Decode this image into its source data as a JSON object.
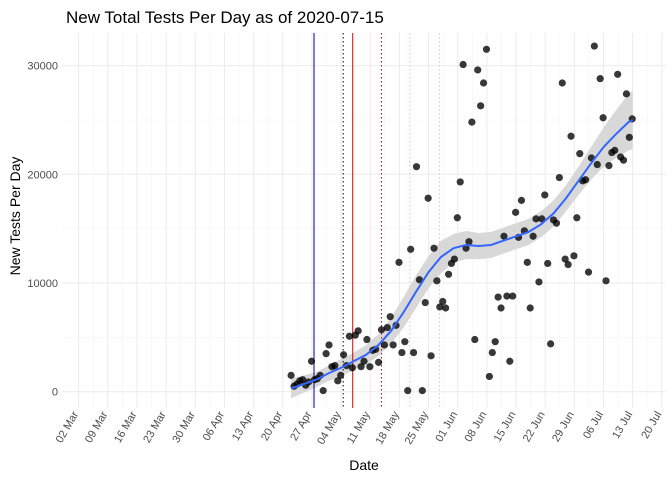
{
  "chart_data": {
    "type": "scatter",
    "title": "New Total Tests Per Day as of 2020-07-15",
    "xlabel": "Date",
    "ylabel": "New Tests Per Day",
    "xlim": [
      -4,
      141
    ],
    "ylim": [
      -1500,
      33000
    ],
    "x_unit": "days since 2020-03-02",
    "x_ticks": [
      {
        "x": 0,
        "label": "02 Mar"
      },
      {
        "x": 7,
        "label": "09 Mar"
      },
      {
        "x": 14,
        "label": "16 Mar"
      },
      {
        "x": 21,
        "label": "23 Mar"
      },
      {
        "x": 28,
        "label": "30 Mar"
      },
      {
        "x": 35,
        "label": "06 Apr"
      },
      {
        "x": 42,
        "label": "13 Apr"
      },
      {
        "x": 49,
        "label": "20 Apr"
      },
      {
        "x": 56,
        "label": "27 Apr"
      },
      {
        "x": 63,
        "label": "04 May"
      },
      {
        "x": 70,
        "label": "11 May"
      },
      {
        "x": 77,
        "label": "18 May"
      },
      {
        "x": 84,
        "label": "25 May"
      },
      {
        "x": 91,
        "label": "01 Jun"
      },
      {
        "x": 98,
        "label": "08 Jun"
      },
      {
        "x": 105,
        "label": "15 Jun"
      },
      {
        "x": 112,
        "label": "22 Jun"
      },
      {
        "x": 119,
        "label": "29 Jun"
      },
      {
        "x": 126,
        "label": "06 Jul"
      },
      {
        "x": 133,
        "label": "13 Jul"
      },
      {
        "x": 140,
        "label": "20 Jul"
      }
    ],
    "y_ticks": [
      0,
      10000,
      20000,
      30000
    ],
    "grid": true,
    "vlines": [
      {
        "x": 7.5,
        "color": "#00008b",
        "style": "solid"
      },
      {
        "x": 14.5,
        "color": "#000000",
        "style": "dotted"
      },
      {
        "x": 16.8,
        "color": "#cc0000",
        "style": "solid"
      },
      {
        "x": 23.7,
        "color": "#cc0000",
        "style": "dotted"
      },
      {
        "x": 30.5,
        "color": "#ffb6c1",
        "style": "dotted"
      },
      {
        "x": 37.6,
        "color": "#ffb6c1",
        "style": "dotted"
      }
    ],
    "points": [
      [
        2.0,
        1500
      ],
      [
        2.7,
        500
      ],
      [
        3.4,
        700
      ],
      [
        4.1,
        1000
      ],
      [
        4.8,
        1100
      ],
      [
        5.5,
        600
      ],
      [
        6.2,
        900
      ],
      [
        6.9,
        2800
      ],
      [
        7.6,
        1100
      ],
      [
        8.3,
        1200
      ],
      [
        9.0,
        1500
      ],
      [
        9.7,
        100
      ],
      [
        10.4,
        3500
      ],
      [
        11.1,
        4300
      ],
      [
        11.8,
        2300
      ],
      [
        12.5,
        2400
      ],
      [
        13.2,
        1000
      ],
      [
        13.9,
        1500
      ],
      [
        14.6,
        3400
      ],
      [
        15.3,
        2400
      ],
      [
        16.0,
        5100
      ],
      [
        16.7,
        2200
      ],
      [
        17.4,
        5200
      ],
      [
        18.1,
        5600
      ],
      [
        18.8,
        2300
      ],
      [
        19.5,
        2800
      ],
      [
        20.2,
        4800
      ],
      [
        20.9,
        2300
      ],
      [
        21.6,
        3800
      ],
      [
        22.3,
        3900
      ],
      [
        23.0,
        2700
      ],
      [
        23.7,
        5700
      ],
      [
        24.4,
        4300
      ],
      [
        25.1,
        5900
      ],
      [
        25.8,
        6900
      ],
      [
        26.5,
        4300
      ],
      [
        27.2,
        6100
      ],
      [
        27.9,
        11900
      ],
      [
        28.6,
        3600
      ],
      [
        29.3,
        4600
      ],
      [
        30.0,
        100
      ],
      [
        30.7,
        13100
      ],
      [
        31.4,
        3600
      ],
      [
        32.1,
        20700
      ],
      [
        32.8,
        10300
      ],
      [
        33.5,
        100
      ],
      [
        34.2,
        8200
      ],
      [
        34.9,
        17800
      ],
      [
        35.6,
        3300
      ],
      [
        36.3,
        13200
      ],
      [
        37.0,
        10200
      ],
      [
        37.7,
        7800
      ],
      [
        38.4,
        8300
      ],
      [
        39.1,
        7700
      ],
      [
        39.8,
        10800
      ],
      [
        40.5,
        11800
      ],
      [
        41.2,
        12200
      ],
      [
        41.9,
        16000
      ],
      [
        42.6,
        19300
      ],
      [
        43.3,
        30100
      ],
      [
        44.0,
        13200
      ],
      [
        44.7,
        13800
      ],
      [
        45.4,
        24800
      ],
      [
        46.1,
        4800
      ],
      [
        46.8,
        29600
      ],
      [
        47.5,
        26300
      ],
      [
        48.2,
        28400
      ],
      [
        48.9,
        31500
      ],
      [
        49.6,
        1400
      ],
      [
        50.3,
        3600
      ],
      [
        51.0,
        4600
      ],
      [
        51.7,
        8700
      ],
      [
        52.4,
        7700
      ],
      [
        53.1,
        14300
      ],
      [
        53.8,
        8800
      ],
      [
        54.5,
        2800
      ],
      [
        55.2,
        8800
      ],
      [
        55.9,
        16500
      ],
      [
        56.6,
        14200
      ],
      [
        57.3,
        17600
      ],
      [
        58.0,
        14800
      ],
      [
        58.7,
        11900
      ],
      [
        59.4,
        7700
      ],
      [
        60.1,
        14300
      ],
      [
        60.8,
        15900
      ],
      [
        61.5,
        10100
      ],
      [
        62.2,
        15900
      ],
      [
        62.9,
        18100
      ],
      [
        63.6,
        11800
      ],
      [
        64.3,
        4400
      ],
      [
        65.0,
        15800
      ],
      [
        65.7,
        15500
      ],
      [
        66.4,
        19700
      ],
      [
        67.1,
        28400
      ],
      [
        67.8,
        12200
      ],
      [
        68.5,
        11700
      ],
      [
        69.2,
        23500
      ],
      [
        69.9,
        12500
      ],
      [
        70.6,
        16000
      ],
      [
        71.3,
        21900
      ],
      [
        72.0,
        19400
      ],
      [
        72.7,
        19500
      ],
      [
        73.4,
        11000
      ],
      [
        74.1,
        21500
      ],
      [
        74.8,
        31800
      ],
      [
        75.5,
        20900
      ],
      [
        76.2,
        28800
      ],
      [
        76.9,
        25200
      ],
      [
        77.6,
        10200
      ],
      [
        78.3,
        20800
      ],
      [
        79.0,
        22000
      ],
      [
        79.7,
        22200
      ],
      [
        80.4,
        29200
      ],
      [
        81.1,
        21600
      ],
      [
        81.8,
        21300
      ],
      [
        82.5,
        27400
      ],
      [
        83.2,
        23400
      ],
      [
        83.9,
        25100
      ]
    ],
    "smooth": [
      [
        2,
        300
      ],
      [
        5,
        700
      ],
      [
        8,
        1100
      ],
      [
        11,
        1700
      ],
      [
        14,
        2200
      ],
      [
        17,
        2800
      ],
      [
        20,
        3400
      ],
      [
        23,
        4300
      ],
      [
        26,
        5600
      ],
      [
        29,
        7300
      ],
      [
        32,
        9200
      ],
      [
        35,
        11000
      ],
      [
        38,
        12400
      ],
      [
        41,
        13200
      ],
      [
        44,
        13500
      ],
      [
        47,
        13400
      ],
      [
        50,
        13500
      ],
      [
        53,
        13900
      ],
      [
        56,
        14300
      ],
      [
        59,
        14700
      ],
      [
        62,
        15400
      ],
      [
        65,
        16400
      ],
      [
        68,
        17800
      ],
      [
        71,
        19400
      ],
      [
        74,
        21000
      ],
      [
        77,
        22500
      ],
      [
        80,
        23700
      ],
      [
        83,
        24800
      ],
      [
        84,
        25000
      ]
    ],
    "band": [
      [
        2,
        -600,
        1200
      ],
      [
        5,
        -100,
        1500
      ],
      [
        8,
        400,
        1800
      ],
      [
        11,
        1000,
        2400
      ],
      [
        14,
        1400,
        3000
      ],
      [
        17,
        2000,
        3600
      ],
      [
        20,
        2500,
        4300
      ],
      [
        23,
        3300,
        5300
      ],
      [
        26,
        4400,
        6800
      ],
      [
        29,
        5900,
        8700
      ],
      [
        32,
        7700,
        10700
      ],
      [
        35,
        9500,
        12500
      ],
      [
        38,
        10900,
        13900
      ],
      [
        41,
        11900,
        14500
      ],
      [
        44,
        12200,
        14800
      ],
      [
        47,
        12200,
        14600
      ],
      [
        50,
        12300,
        14700
      ],
      [
        53,
        12700,
        15100
      ],
      [
        56,
        13100,
        15500
      ],
      [
        59,
        13500,
        15900
      ],
      [
        62,
        14200,
        16600
      ],
      [
        65,
        15200,
        17600
      ],
      [
        68,
        16600,
        19000
      ],
      [
        71,
        18100,
        20700
      ],
      [
        74,
        19500,
        22500
      ],
      [
        77,
        20700,
        24300
      ],
      [
        80,
        21500,
        25900
      ],
      [
        83,
        22200,
        27400
      ],
      [
        84,
        22300,
        27700
      ]
    ],
    "x_offset_days": 49
  }
}
